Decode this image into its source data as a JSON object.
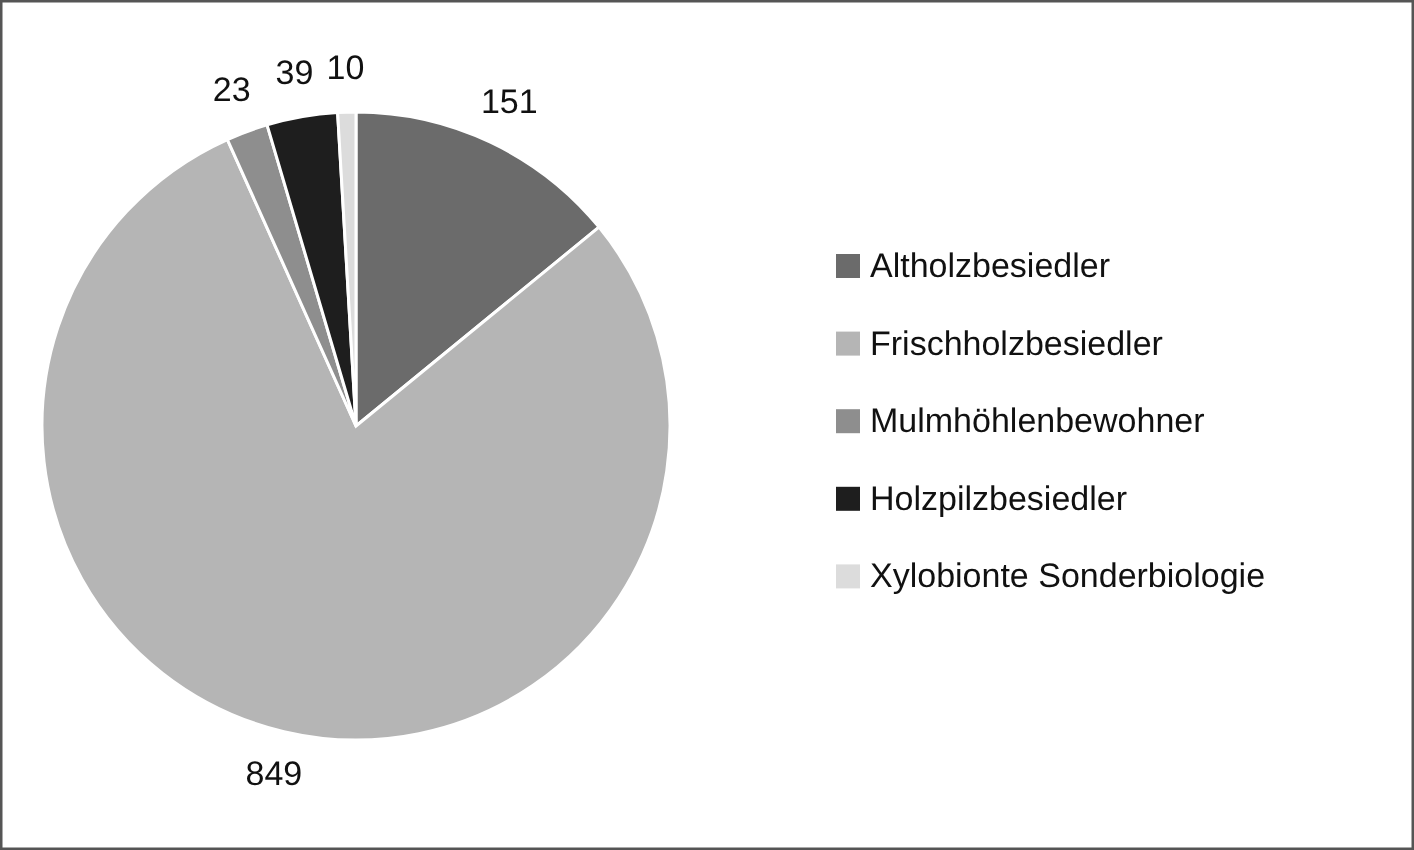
{
  "chart_data": {
    "type": "pie",
    "categories": [
      "Altholzbesiedler",
      "Frischholzbesiedler",
      "Mulmhöhlenbewohner",
      "Holzpilzbesiedler",
      "Xylobionte Sonderbiologie"
    ],
    "values": [
      151,
      849,
      23,
      39,
      10
    ],
    "colors": [
      "#6b6b6b",
      "#b5b5b5",
      "#8e8e8e",
      "#1e1e1e",
      "#dcdcdc"
    ],
    "data_labels": true,
    "legend": "right"
  }
}
